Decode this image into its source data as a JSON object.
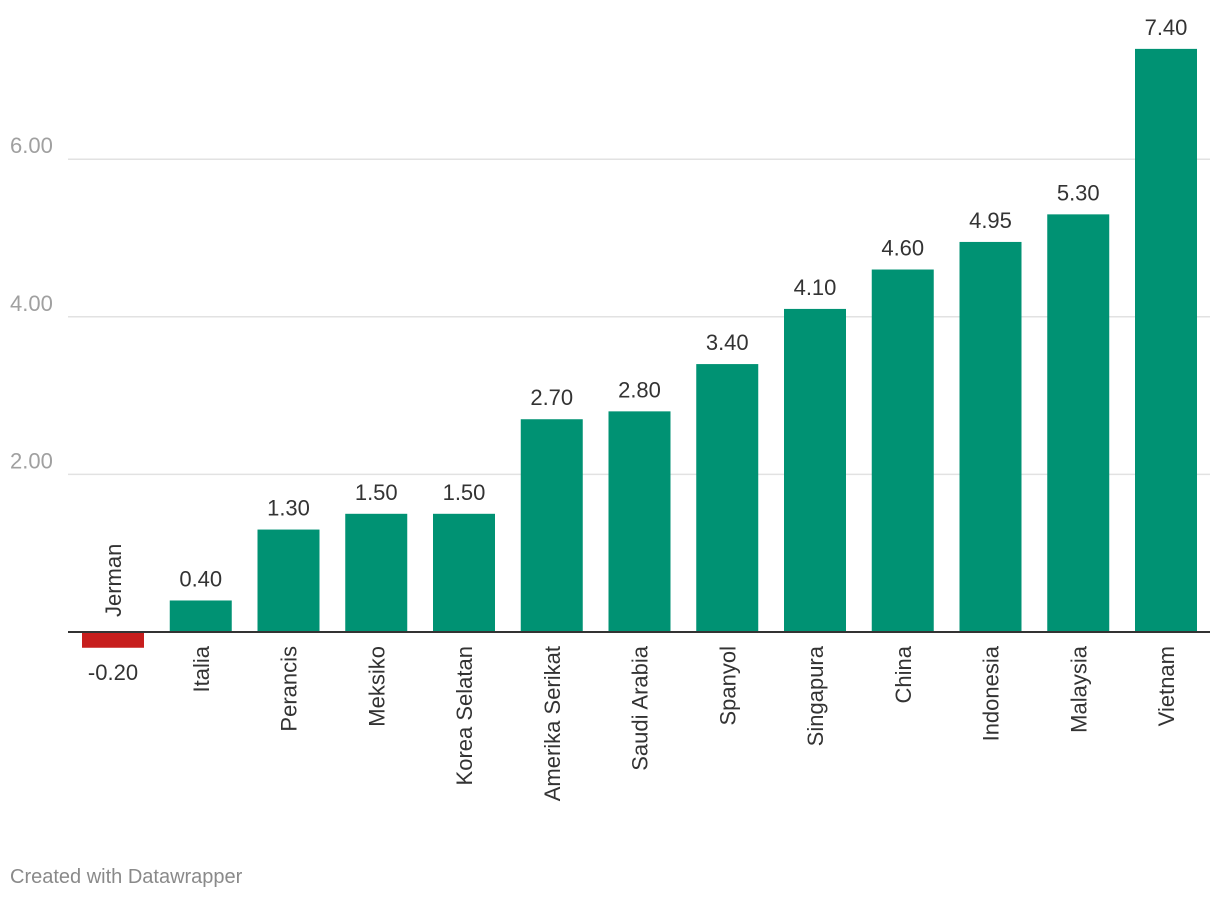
{
  "chart_data": {
    "type": "bar",
    "categories": [
      "Jerman",
      "Italia",
      "Perancis",
      "Meksiko",
      "Korea Selatan",
      "Amerika Serikat",
      "Saudi Arabia",
      "Spanyol",
      "Singapura",
      "China",
      "Indonesia",
      "Malaysia",
      "Vietnam"
    ],
    "values": [
      -0.2,
      0.4,
      1.3,
      1.5,
      1.5,
      2.7,
      2.8,
      3.4,
      4.1,
      4.6,
      4.95,
      5.3,
      7.4
    ],
    "value_labels": [
      "-0.20",
      "0.40",
      "1.30",
      "1.50",
      "1.50",
      "2.70",
      "2.80",
      "3.40",
      "4.10",
      "4.60",
      "4.95",
      "5.30",
      "7.40"
    ],
    "y_ticks": [
      2,
      4,
      6
    ],
    "y_tick_labels": [
      "2.00",
      "4.00",
      "6.00"
    ],
    "ylim": [
      -0.2,
      7.4
    ],
    "grid": true,
    "title": "",
    "xlabel": "",
    "ylabel": "",
    "colors": {
      "positive": "#009273",
      "negative": "#c71e1d",
      "gridline": "#e2e2e2",
      "axis": "#333333",
      "tick_label": "#a0a0a0",
      "text": "#333333"
    }
  },
  "footer": {
    "credit": "Created with Datawrapper"
  }
}
